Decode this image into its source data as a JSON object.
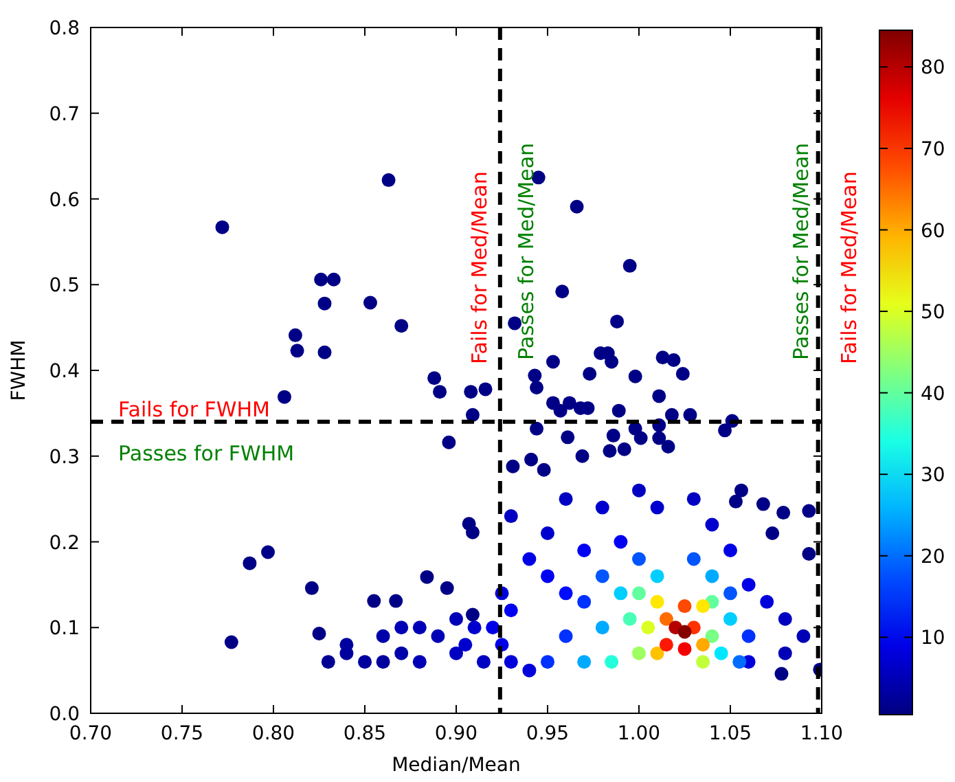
{
  "chart_data": {
    "type": "scatter",
    "xlabel": "Median/Mean",
    "ylabel": "FWHM",
    "marker": "circle",
    "xlim": [
      0.7,
      1.1
    ],
    "xticks": [
      {
        "value": 0.7,
        "label": "0.70"
      },
      {
        "value": 0.75,
        "label": "0.75"
      },
      {
        "value": 0.8,
        "label": "0.80"
      },
      {
        "value": 0.85,
        "label": "0.85"
      },
      {
        "value": 0.9,
        "label": "0.90"
      },
      {
        "value": 0.95,
        "label": "0.95"
      },
      {
        "value": 1.0,
        "label": "1.00"
      },
      {
        "value": 1.05,
        "label": "1.05"
      },
      {
        "value": 1.1,
        "label": "1.10"
      }
    ],
    "ylim": [
      0,
      0.8
    ],
    "yticks": [
      {
        "value": 0,
        "label": "0.0"
      },
      {
        "value": 0.1,
        "label": "0.1"
      },
      {
        "value": 0.2,
        "label": "0.2"
      },
      {
        "value": 0.3,
        "label": "0.3"
      },
      {
        "value": 0.4,
        "label": "0.4"
      },
      {
        "value": 0.5,
        "label": "0.5"
      },
      {
        "value": 0.6,
        "label": "0.6"
      },
      {
        "value": 0.7,
        "label": "0.7"
      },
      {
        "value": 0.8,
        "label": "0.8"
      }
    ],
    "clim": [
      0.5,
      84.5
    ],
    "cticks": [
      10,
      20,
      30,
      40,
      50,
      60,
      70,
      80
    ],
    "ref_lines": [
      {
        "axis": "x",
        "value": 0.924,
        "line_style": "dashed",
        "color": "#000000"
      },
      {
        "axis": "x",
        "value": 1.098,
        "line_style": "dashed",
        "color": "#000000"
      },
      {
        "axis": "y",
        "value": 0.34,
        "line_style": "dashed",
        "color": "#000000"
      }
    ],
    "annotations": [
      "Fails for FWHM",
      "Passes for FWHM",
      "Fails for Med/Mean",
      "Passes for Med/Mean",
      "Passes for Med/Mean",
      "Fails for Med/Mean"
    ],
    "x": [
      0.772,
      0.863,
      0.812,
      0.813,
      0.828,
      0.826,
      0.833,
      0.828,
      0.853,
      0.87,
      0.806,
      0.888,
      0.891,
      0.908,
      0.916,
      0.909,
      0.896,
      0.787,
      0.797,
      0.777,
      0.821,
      0.825,
      0.855,
      0.867,
      0.884,
      0.895,
      0.909,
      0.907,
      0.909,
      0.945,
      0.966,
      0.995,
      0.958,
      0.932,
      0.988,
      0.953,
      0.979,
      0.983,
      0.985,
      0.943,
      0.944,
      0.973,
      0.998,
      1.013,
      1.019,
      1.024,
      1.011,
      0.953,
      0.962,
      0.968,
      0.972,
      0.957,
      0.989,
      1.018,
      1.028,
      1.051,
      1.047,
      0.944,
      0.998,
      1.011,
      0.961,
      0.986,
      1.001,
      1.011,
      1.016,
      0.969,
      0.984,
      0.992,
      0.941,
      0.931,
      0.948,
      1.056,
      1.068,
      1.079,
      1.093,
      1.073,
      1.093,
      1.053,
      1.078,
      1.099,
      0.83,
      0.84,
      0.85,
      0.86,
      0.87,
      0.88,
      0.89,
      0.9,
      0.91,
      0.915,
      0.9,
      0.88,
      0.86,
      0.84,
      0.87,
      0.905,
      0.93,
      0.95,
      0.96,
      0.98,
      1.0,
      1.01,
      1.03,
      1.04,
      0.94,
      0.97,
      0.99,
      1.05,
      1.06,
      1.07,
      1.08,
      1.09,
      1.08,
      1.06,
      0.925,
      0.93,
      0.925,
      0.93,
      0.94,
      0.95,
      0.96,
      0.92,
      0.96,
      0.97,
      0.98,
      1.0,
      1.03,
      1.05,
      1.06,
      1.055,
      0.95,
      0.97,
      0.98,
      0.99,
      1.01,
      1.04,
      1.05,
      1.045,
      0.985,
      0.995,
      1.0,
      1.04,
      1.04,
      1.035,
      1.0,
      1.005,
      1.01,
      1.035,
      1.035,
      1.01,
      1.015,
      1.025,
      1.03,
      1.015,
      1.025,
      1.02,
      1.025
    ],
    "values": [
      0.567,
      0.622,
      0.441,
      0.423,
      0.478,
      0.506,
      0.506,
      0.421,
      0.479,
      0.452,
      0.369,
      0.391,
      0.375,
      0.375,
      0.378,
      0.348,
      0.316,
      0.175,
      0.188,
      0.083,
      0.146,
      0.093,
      0.131,
      0.131,
      0.159,
      0.146,
      0.115,
      0.221,
      0.211,
      0.625,
      0.591,
      0.522,
      0.492,
      0.455,
      0.457,
      0.41,
      0.42,
      0.42,
      0.41,
      0.394,
      0.38,
      0.396,
      0.393,
      0.415,
      0.412,
      0.396,
      0.37,
      0.362,
      0.362,
      0.356,
      0.356,
      0.353,
      0.353,
      0.348,
      0.348,
      0.341,
      0.33,
      0.332,
      0.332,
      0.336,
      0.322,
      0.324,
      0.321,
      0.321,
      0.311,
      0.3,
      0.306,
      0.308,
      0.296,
      0.288,
      0.284,
      0.26,
      0.244,
      0.234,
      0.236,
      0.21,
      0.186,
      0.247,
      0.046,
      0.051,
      0.06,
      0.08,
      0.06,
      0.09,
      0.07,
      0.06,
      0.09,
      0.07,
      0.1,
      0.06,
      0.11,
      0.1,
      0.06,
      0.07,
      0.1,
      0.08,
      0.23,
      0.21,
      0.25,
      0.24,
      0.26,
      0.24,
      0.25,
      0.22,
      0.18,
      0.19,
      0.2,
      0.19,
      0.15,
      0.13,
      0.11,
      0.09,
      0.07,
      0.06,
      0.14,
      0.12,
      0.08,
      0.06,
      0.05,
      0.16,
      0.14,
      0.1,
      0.09,
      0.13,
      0.16,
      0.18,
      0.18,
      0.14,
      0.09,
      0.06,
      0.06,
      0.06,
      0.1,
      0.14,
      0.16,
      0.16,
      0.11,
      0.07,
      0.06,
      0.11,
      0.14,
      0.13,
      0.09,
      0.06,
      0.07,
      0.1,
      0.13,
      0.125,
      0.08,
      0.07,
      0.11,
      0.125,
      0.1,
      0.08,
      0.075,
      0.1,
      0.095
    ],
    "cvalues": [
      1,
      1,
      1,
      1,
      1,
      1,
      1,
      1,
      1,
      1,
      1,
      1,
      1,
      1,
      1,
      1,
      1,
      1,
      1,
      1,
      1,
      1,
      1,
      1,
      1,
      1,
      1,
      1,
      1,
      1,
      1,
      1,
      1,
      1,
      1,
      1,
      1,
      1,
      1,
      1,
      1,
      1,
      1,
      1,
      1,
      1,
      1,
      1,
      1,
      1,
      1,
      1,
      1,
      1,
      1,
      1,
      1,
      1,
      1,
      1,
      1,
      1,
      1,
      1,
      1,
      1,
      1,
      1,
      1,
      1,
      1,
      1,
      1,
      1,
      1,
      1,
      1,
      1,
      1,
      1,
      2,
      3,
      3,
      4,
      4,
      5,
      5,
      6,
      7,
      6,
      5,
      5,
      3,
      3,
      5,
      7,
      6,
      7,
      6,
      7,
      6,
      7,
      6,
      7,
      9,
      10,
      10,
      9,
      9,
      8,
      6,
      5,
      5,
      8,
      8,
      10,
      9,
      8,
      8,
      10,
      12,
      9,
      15,
      15,
      18,
      18,
      18,
      18,
      15,
      20,
      15,
      25,
      25,
      28,
      28,
      25,
      28,
      30,
      35,
      38,
      40,
      40,
      42,
      48,
      45,
      50,
      55,
      55,
      60,
      58,
      65,
      68,
      70,
      72,
      75,
      80,
      84
    ]
  }
}
